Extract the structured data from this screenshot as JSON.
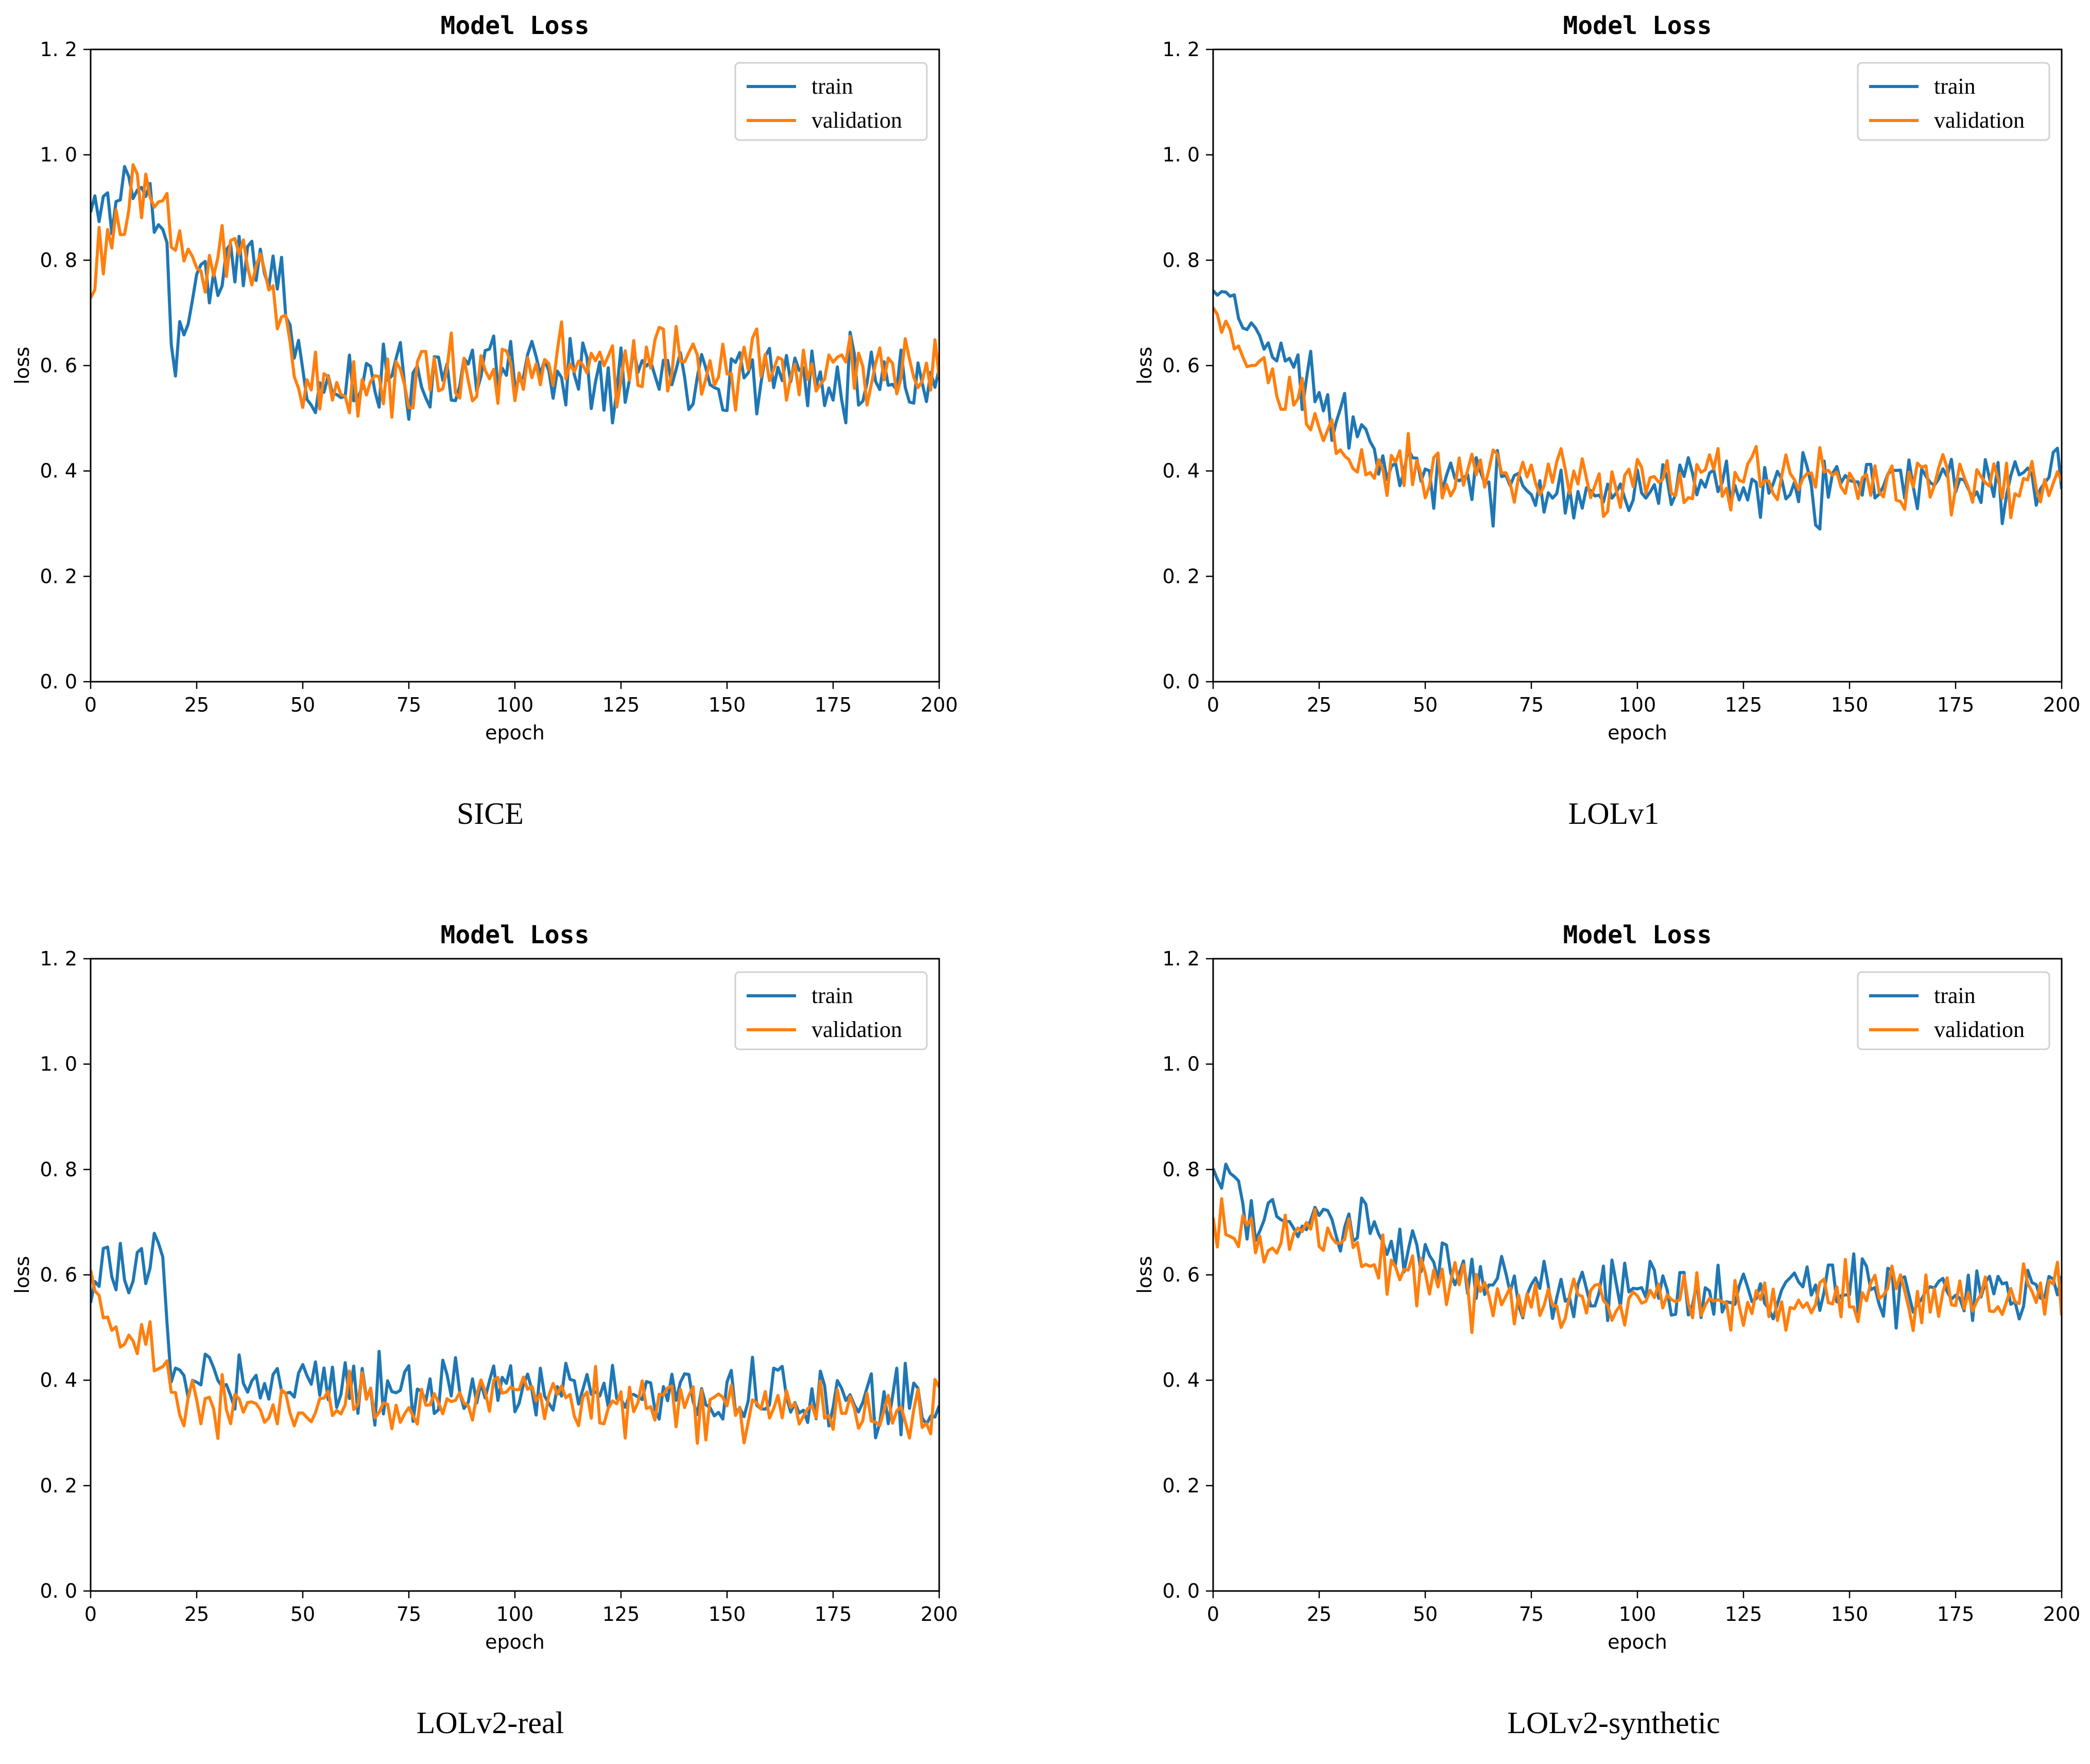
{
  "colors": {
    "train": "#1f77b4",
    "validation": "#ff7f0e"
  },
  "chart_data": [
    {
      "type": "line",
      "title": "Model Loss",
      "xlabel": "epoch",
      "ylabel": "loss",
      "caption": "SICE",
      "xlim": [
        0,
        200
      ],
      "ylim": [
        0,
        1.2
      ],
      "xticks": [
        0,
        25,
        50,
        75,
        100,
        125,
        150,
        175,
        200
      ],
      "yticks": [
        0.0,
        0.2,
        0.4,
        0.6,
        0.8,
        1.0,
        1.2
      ],
      "legend_position": "top-right",
      "series": [
        {
          "name": "train",
          "color": "#1f77b4",
          "gen": {
            "seed": 11,
            "segments": [
              [
                0,
                0.88
              ],
              [
                10,
                0.95
              ],
              [
                18,
                0.86
              ],
              [
                19,
                0.6
              ],
              [
                25,
                0.76
              ],
              [
                40,
                0.8
              ],
              [
                45,
                0.76
              ],
              [
                50,
                0.56
              ],
              [
                100,
                0.6
              ],
              [
                200,
                0.58
              ]
            ],
            "noise": 0.11
          }
        },
        {
          "name": "validation",
          "color": "#ff7f0e",
          "gen": {
            "seed": 23,
            "segments": [
              [
                0,
                0.78
              ],
              [
                10,
                0.9
              ],
              [
                18,
                0.9
              ],
              [
                25,
                0.78
              ],
              [
                40,
                0.82
              ],
              [
                45,
                0.7
              ],
              [
                50,
                0.55
              ],
              [
                100,
                0.6
              ],
              [
                200,
                0.6
              ]
            ],
            "noise": 0.11
          }
        }
      ]
    },
    {
      "type": "line",
      "title": "Model Loss",
      "xlabel": "epoch",
      "ylabel": "loss",
      "caption": "LOLv1",
      "xlim": [
        0,
        200
      ],
      "ylim": [
        0,
        1.2
      ],
      "xticks": [
        0,
        25,
        50,
        75,
        100,
        125,
        150,
        175,
        200
      ],
      "yticks": [
        0.0,
        0.2,
        0.4,
        0.6,
        0.8,
        1.0,
        1.2
      ],
      "legend_position": "top-right",
      "series": [
        {
          "name": "train",
          "color": "#1f77b4",
          "gen": {
            "seed": 37,
            "segments": [
              [
                0,
                0.74
              ],
              [
                10,
                0.66
              ],
              [
                25,
                0.55
              ],
              [
                35,
                0.48
              ],
              [
                50,
                0.38
              ],
              [
                100,
                0.36
              ],
              [
                200,
                0.38
              ]
            ],
            "noise": 0.09
          }
        },
        {
          "name": "validation",
          "color": "#ff7f0e",
          "gen": {
            "seed": 41,
            "segments": [
              [
                0,
                0.68
              ],
              [
                10,
                0.62
              ],
              [
                25,
                0.48
              ],
              [
                35,
                0.4
              ],
              [
                50,
                0.4
              ],
              [
                100,
                0.38
              ],
              [
                200,
                0.38
              ]
            ],
            "noise": 0.09
          }
        }
      ]
    },
    {
      "type": "line",
      "title": "Model Loss",
      "xlabel": "epoch",
      "ylabel": "loss",
      "caption": "LOLv2-real",
      "xlim": [
        0,
        200
      ],
      "ylim": [
        0,
        1.2
      ],
      "xticks": [
        0,
        25,
        50,
        75,
        100,
        125,
        150,
        175,
        200
      ],
      "yticks": [
        0.0,
        0.2,
        0.4,
        0.6,
        0.8,
        1.0,
        1.2
      ],
      "legend_position": "top-right",
      "series": [
        {
          "name": "train",
          "color": "#1f77b4",
          "gen": {
            "seed": 53,
            "segments": [
              [
                0,
                0.58
              ],
              [
                8,
                0.6
              ],
              [
                16,
                0.64
              ],
              [
                19,
                0.42
              ],
              [
                50,
                0.4
              ],
              [
                100,
                0.38
              ],
              [
                200,
                0.36
              ]
            ],
            "noise": 0.09
          }
        },
        {
          "name": "validation",
          "color": "#ff7f0e",
          "gen": {
            "seed": 67,
            "segments": [
              [
                0,
                0.58
              ],
              [
                8,
                0.48
              ],
              [
                16,
                0.44
              ],
              [
                19,
                0.36
              ],
              [
                50,
                0.35
              ],
              [
                100,
                0.36
              ],
              [
                200,
                0.34
              ]
            ],
            "noise": 0.09
          }
        }
      ]
    },
    {
      "type": "line",
      "title": "Model Loss",
      "xlabel": "epoch",
      "ylabel": "loss",
      "caption": "LOLv2-synthetic",
      "xlim": [
        0,
        200
      ],
      "ylim": [
        0,
        1.2
      ],
      "xticks": [
        0,
        25,
        50,
        75,
        100,
        125,
        150,
        175,
        200
      ],
      "yticks": [
        0.0,
        0.2,
        0.4,
        0.6,
        0.8,
        1.0,
        1.2
      ],
      "legend_position": "top-right",
      "series": [
        {
          "name": "train",
          "color": "#1f77b4",
          "gen": {
            "seed": 71,
            "segments": [
              [
                0,
                0.8
              ],
              [
                10,
                0.72
              ],
              [
                25,
                0.7
              ],
              [
                50,
                0.64
              ],
              [
                60,
                0.58
              ],
              [
                100,
                0.56
              ],
              [
                200,
                0.58
              ]
            ],
            "noise": 0.09
          }
        },
        {
          "name": "validation",
          "color": "#ff7f0e",
          "gen": {
            "seed": 89,
            "segments": [
              [
                0,
                0.68
              ],
              [
                10,
                0.68
              ],
              [
                25,
                0.68
              ],
              [
                50,
                0.6
              ],
              [
                60,
                0.56
              ],
              [
                100,
                0.55
              ],
              [
                200,
                0.57
              ]
            ],
            "noise": 0.09
          }
        }
      ]
    }
  ]
}
